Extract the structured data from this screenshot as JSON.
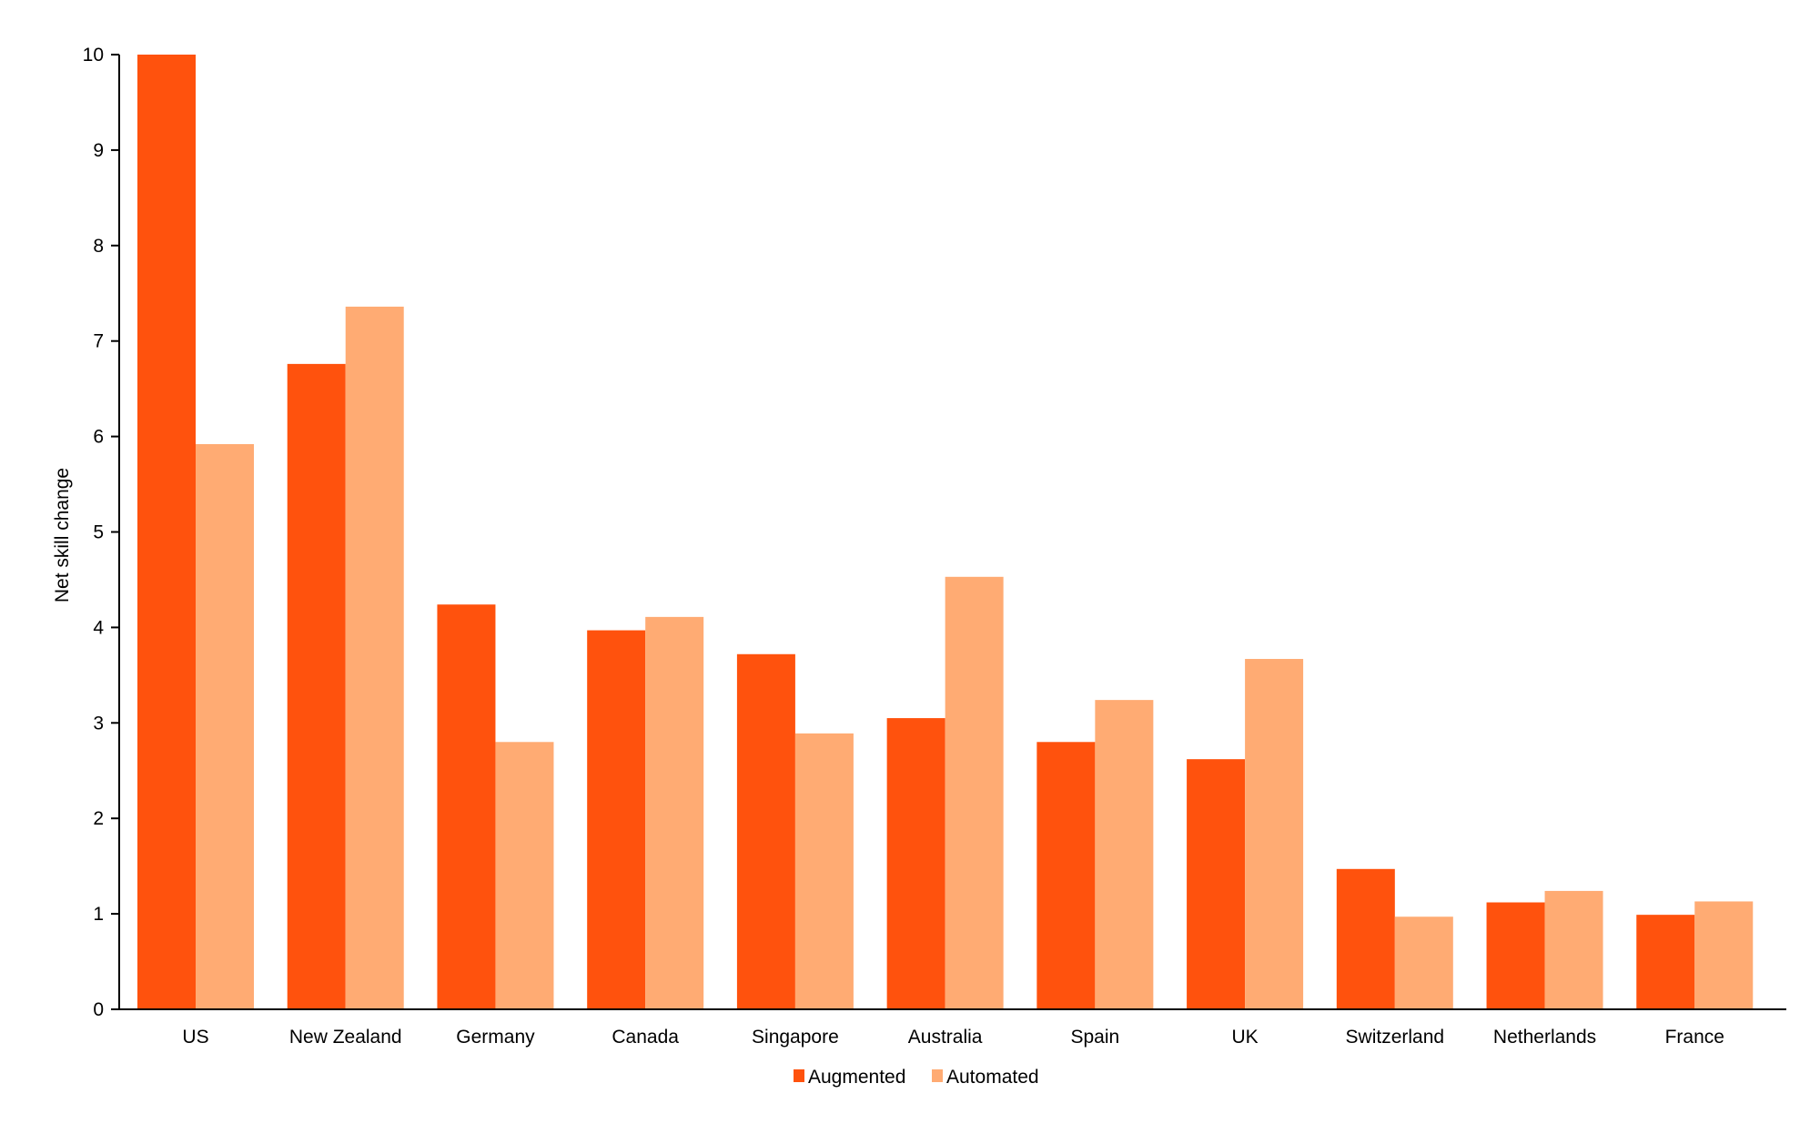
{
  "chart_data": {
    "type": "bar",
    "ylabel": "Net skill change",
    "xlabel": "",
    "ylim": [
      0,
      10
    ],
    "yticks": [
      0,
      1,
      2,
      3,
      4,
      5,
      6,
      7,
      8,
      9,
      10
    ],
    "grid": false,
    "legend_position": "bottom-center",
    "categories": [
      "US",
      "New Zealand",
      "Germany",
      "Canada",
      "Singapore",
      "Australia",
      "Spain",
      "UK",
      "Switzerland",
      "Netherlands",
      "France"
    ],
    "series": [
      {
        "name": "Augmented",
        "color": "#FF520D",
        "values": [
          10.0,
          6.76,
          4.24,
          3.97,
          3.72,
          3.05,
          2.8,
          2.62,
          1.47,
          1.12,
          0.99
        ]
      },
      {
        "name": "Automated",
        "color": "#FFAB73",
        "values": [
          5.92,
          7.36,
          2.8,
          4.11,
          2.89,
          4.53,
          3.24,
          3.67,
          0.97,
          1.24,
          1.13
        ]
      }
    ]
  }
}
